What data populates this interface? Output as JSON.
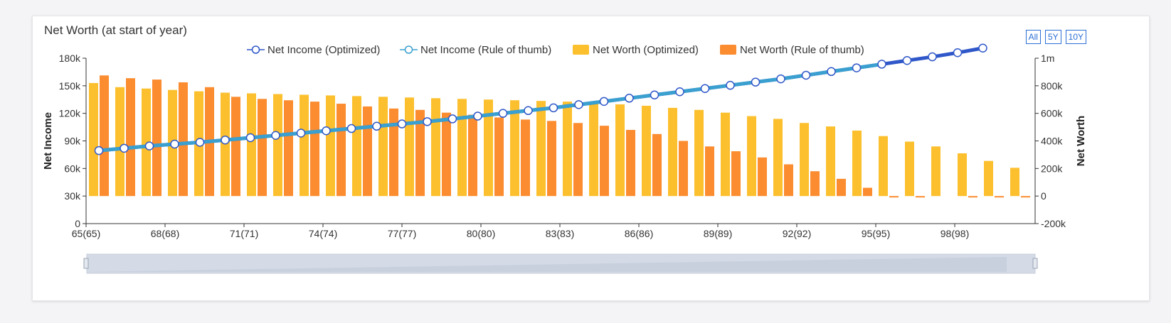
{
  "card": {
    "title": "Net Worth (at start of year)",
    "range_buttons": [
      "All",
      "5Y",
      "10Y"
    ]
  },
  "colors": {
    "optimized_line": "#2f57c9",
    "rule_line": "#3aa0cf",
    "networth_optimized": "#fcc02e",
    "networth_rule": "#fb8c30",
    "axis": "#333333",
    "slider_fill": "#d4dbe7"
  },
  "chart_data": {
    "type": "bar",
    "title": "Net Worth (at start of year)",
    "categories": [
      "65(65)",
      "66(66)",
      "67(67)",
      "68(68)",
      "69(69)",
      "70(70)",
      "71(71)",
      "72(72)",
      "73(73)",
      "74(74)",
      "75(75)",
      "76(76)",
      "77(77)",
      "78(78)",
      "79(79)",
      "80(80)",
      "81(81)",
      "82(82)",
      "83(83)",
      "84(84)",
      "85(85)",
      "86(86)",
      "87(87)",
      "88(88)",
      "89(89)",
      "90(90)",
      "91(91)",
      "92(92)",
      "93(93)",
      "94(94)",
      "95(95)",
      "96(96)",
      "97(97)",
      "98(98)",
      "99(99)",
      "100(100)"
    ],
    "xtick_labels": [
      "65(65)",
      "68(68)",
      "71(71)",
      "74(74)",
      "77(77)",
      "80(80)",
      "83(83)",
      "86(86)",
      "89(89)",
      "92(92)",
      "95(95)",
      "98(98)"
    ],
    "ylabel_left": "Net Income",
    "ylabel_right": "Net Worth",
    "left_axis": {
      "ylim": [
        0,
        180000
      ],
      "ticks": [
        "0",
        "30k",
        "60k",
        "90k",
        "120k",
        "150k",
        "180k"
      ]
    },
    "right_axis": {
      "ylim": [
        -200000,
        1000000
      ],
      "ticks": [
        "-200k",
        "0",
        "200k",
        "400k",
        "600k",
        "800k",
        "1m"
      ]
    },
    "legend_position": "top-center",
    "series": [
      {
        "name": "Net Income (Optimized)",
        "type": "line",
        "axis": "left",
        "values": [
          79500,
          82000,
          84500,
          86500,
          88500,
          91000,
          93500,
          96000,
          98500,
          101000,
          103500,
          106000,
          108500,
          111000,
          114000,
          117000,
          120000,
          123000,
          126000,
          129500,
          133000,
          136500,
          140000,
          143500,
          147000,
          150500,
          154000,
          157500,
          161500,
          165500,
          169500,
          173500,
          177500,
          181500,
          186000,
          191000
        ]
      },
      {
        "name": "Net Income (Rule of thumb)",
        "type": "line",
        "axis": "left",
        "values": [
          79500,
          82000,
          84500,
          86500,
          88500,
          91000,
          93500,
          96000,
          98500,
          101000,
          103500,
          106000,
          108500,
          111000,
          114000,
          117000,
          120000,
          123000,
          126000,
          129500,
          133000,
          136500,
          140000,
          143500,
          147000,
          150500,
          154000,
          157500,
          161500,
          165500,
          169500,
          173500,
          null,
          null,
          null,
          null
        ]
      },
      {
        "name": "Net Worth (Optimized)",
        "type": "bar",
        "axis": "right",
        "values": [
          820000,
          790000,
          780000,
          770000,
          760000,
          750000,
          745000,
          740000,
          735000,
          730000,
          725000,
          720000,
          715000,
          710000,
          705000,
          700000,
          695000,
          690000,
          685000,
          680000,
          665000,
          655000,
          640000,
          625000,
          605000,
          580000,
          560000,
          530000,
          505000,
          475000,
          435000,
          395000,
          360000,
          310000,
          255000,
          205000
        ]
      },
      {
        "name": "Net Worth (Rule of thumb)",
        "type": "bar",
        "axis": "right",
        "values": [
          875000,
          855000,
          845000,
          825000,
          790000,
          720000,
          705000,
          695000,
          685000,
          670000,
          650000,
          635000,
          625000,
          605000,
          590000,
          570000,
          555000,
          545000,
          530000,
          510000,
          480000,
          450000,
          400000,
          360000,
          325000,
          280000,
          230000,
          180000,
          125000,
          60000,
          0,
          -200000,
          -240000,
          -200000,
          -200000,
          -200000
        ]
      }
    ]
  },
  "slider": {
    "handle_left": "handle",
    "handle_right": "handle"
  }
}
